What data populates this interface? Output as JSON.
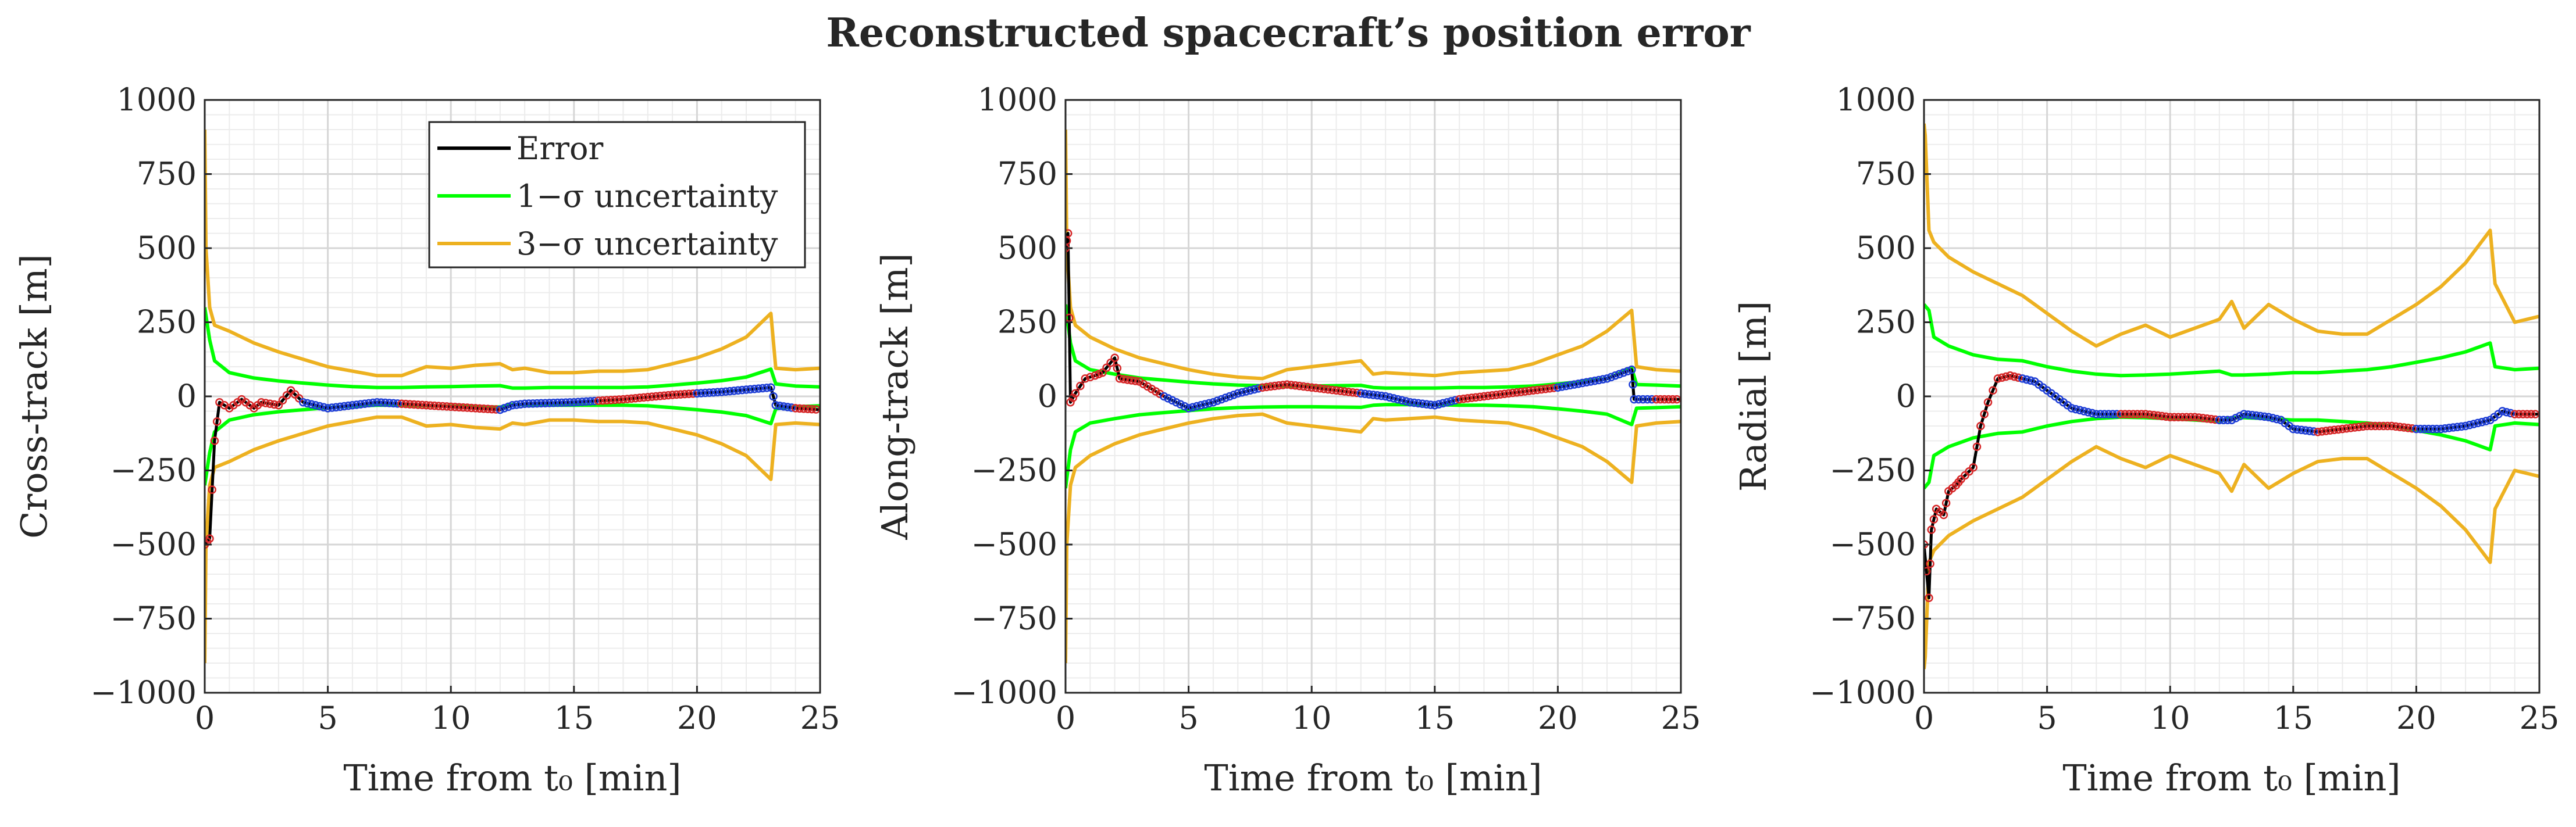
{
  "title": "Reconstructed spacecraft’s position error",
  "legend": {
    "placement": "top-right of first panel",
    "entries": [
      {
        "label": "Error",
        "color": "#000000"
      },
      {
        "label": "1−σ uncertainty",
        "color": "#00ff00"
      },
      {
        "label": "3−σ uncertainty",
        "color": "#edb120"
      }
    ]
  },
  "chart_data": [
    {
      "type": "line",
      "ylabel": "Cross-track [m]",
      "xlabel": "Time from t₀ [min]",
      "xlim": [
        0,
        25
      ],
      "ylim": [
        -1000,
        1000
      ],
      "xticks": [
        0,
        5,
        10,
        15,
        20,
        25
      ],
      "yticks": [
        -1000,
        -750,
        -500,
        -250,
        0,
        250,
        500,
        750,
        1000
      ],
      "grid": true,
      "series": [
        {
          "name": "Error",
          "color": "#000000",
          "x": [
            0,
            0.2,
            0.4,
            0.6,
            1.0,
            1.5,
            2.0,
            2.3,
            3.0,
            3.5,
            4.0,
            5.0,
            6.0,
            7.0,
            8.0,
            9.0,
            10.0,
            11.0,
            12.0,
            12.5,
            13.0,
            15.0,
            17.0,
            19.0,
            21.0,
            23.0,
            23.2,
            24.0,
            25.0
          ],
          "y": [
            -500,
            -480,
            -150,
            -20,
            -40,
            -10,
            -40,
            -20,
            -30,
            20,
            -20,
            -40,
            -30,
            -20,
            -25,
            -30,
            -35,
            -40,
            -45,
            -30,
            -25,
            -20,
            -10,
            5,
            15,
            30,
            -30,
            -40,
            -45
          ]
        },
        {
          "name": "1−σ uncertainty (upper)",
          "color": "#00ff00",
          "x": [
            0,
            0.2,
            0.4,
            1,
            2,
            3,
            4,
            5,
            6,
            7,
            8,
            9,
            10,
            11,
            12,
            12.5,
            13,
            14,
            15,
            16,
            17,
            18,
            19,
            20,
            21,
            22,
            23,
            23.2,
            24,
            25
          ],
          "y": [
            300,
            190,
            120,
            80,
            62,
            52,
            45,
            38,
            33,
            30,
            30,
            32,
            33,
            35,
            36,
            28,
            28,
            30,
            30,
            30,
            30,
            32,
            38,
            45,
            53,
            65,
            92,
            42,
            35,
            32
          ]
        },
        {
          "name": "3−σ uncertainty (upper)",
          "color": "#edb120",
          "x": [
            0,
            0.05,
            0.2,
            0.4,
            1,
            2,
            3,
            4,
            5,
            6,
            7,
            8,
            9,
            10,
            11,
            12,
            12.5,
            13,
            14,
            15,
            16,
            17,
            18,
            19,
            20,
            21,
            22,
            23,
            23.2,
            24,
            25
          ],
          "y": [
            900,
            500,
            300,
            240,
            220,
            180,
            150,
            125,
            100,
            85,
            70,
            70,
            100,
            95,
            105,
            110,
            90,
            95,
            80,
            80,
            85,
            85,
            90,
            110,
            130,
            160,
            200,
            280,
            95,
            90,
            95
          ]
        }
      ]
    },
    {
      "type": "line",
      "ylabel": "Along-track [m]",
      "xlabel": "Time from t₀ [min]",
      "xlim": [
        0,
        25
      ],
      "ylim": [
        -1000,
        1000
      ],
      "xticks": [
        0,
        5,
        10,
        15,
        20,
        25
      ],
      "yticks": [
        -1000,
        -750,
        -500,
        -250,
        0,
        250,
        500,
        750,
        1000
      ],
      "grid": true,
      "series": [
        {
          "name": "Error",
          "color": "#000000",
          "x": [
            0,
            0.1,
            0.2,
            0.4,
            0.8,
            1.2,
            1.5,
            2.0,
            2.2,
            3.0,
            4.0,
            5.0,
            6.0,
            7.0,
            8.0,
            9.0,
            10.0,
            11.0,
            12.0,
            13.0,
            14.0,
            15.0,
            16.0,
            17.0,
            18.0,
            19.0,
            20.0,
            21.0,
            22.0,
            23.0,
            23.1,
            24.0,
            25.0
          ],
          "y": [
            500,
            550,
            -20,
            10,
            60,
            70,
            80,
            130,
            60,
            50,
            0,
            -40,
            -20,
            10,
            30,
            40,
            30,
            20,
            10,
            0,
            -20,
            -30,
            -10,
            0,
            10,
            20,
            30,
            45,
            60,
            90,
            -10,
            -10,
            -10
          ]
        },
        {
          "name": "1−σ uncertainty (upper)",
          "color": "#00ff00",
          "x": [
            0,
            0.2,
            0.4,
            1,
            2,
            3,
            4,
            5,
            6,
            7,
            8,
            9,
            10,
            11,
            12,
            12.5,
            13,
            14,
            15,
            16,
            17,
            18,
            19,
            20,
            21,
            22,
            23,
            23.2,
            24,
            25
          ],
          "y": [
            310,
            180,
            120,
            90,
            75,
            62,
            55,
            48,
            42,
            38,
            36,
            35,
            35,
            36,
            37,
            30,
            28,
            28,
            28,
            30,
            30,
            32,
            35,
            42,
            50,
            60,
            95,
            40,
            38,
            35
          ]
        },
        {
          "name": "3−σ uncertainty (upper)",
          "color": "#edb120",
          "x": [
            0,
            0.05,
            0.2,
            0.4,
            1,
            2,
            3,
            4,
            5,
            6,
            7,
            8,
            9,
            10,
            11,
            12,
            12.5,
            13,
            14,
            15,
            16,
            17,
            18,
            19,
            20,
            21,
            22,
            23,
            23.2,
            24,
            25
          ],
          "y": [
            900,
            500,
            300,
            240,
            200,
            160,
            130,
            110,
            90,
            75,
            65,
            60,
            90,
            100,
            110,
            120,
            75,
            80,
            75,
            70,
            80,
            85,
            90,
            110,
            140,
            170,
            220,
            290,
            100,
            90,
            85
          ]
        }
      ]
    },
    {
      "type": "line",
      "ylabel": "Radial [m]",
      "xlabel": "Time from t₀ [min]",
      "xlim": [
        0,
        25
      ],
      "ylim": [
        -1000,
        1000
      ],
      "xticks": [
        0,
        5,
        10,
        15,
        20,
        25
      ],
      "yticks": [
        -1000,
        -750,
        -500,
        -250,
        0,
        250,
        500,
        750,
        1000
      ],
      "grid": true,
      "series": [
        {
          "name": "Error",
          "color": "#000000",
          "x": [
            0,
            0.2,
            0.3,
            0.5,
            0.8,
            1.0,
            1.3,
            1.5,
            2.0,
            2.3,
            2.6,
            3.0,
            3.5,
            4.0,
            4.5,
            5.0,
            6.0,
            7.0,
            8.0,
            9.0,
            10.0,
            11.0,
            12.0,
            12.5,
            13.0,
            14.0,
            14.5,
            15.0,
            16.0,
            17.0,
            18.0,
            19.0,
            20.0,
            21.0,
            22.0,
            23.0,
            23.5,
            24.0,
            25.0
          ],
          "y": [
            -500,
            -680,
            -450,
            -380,
            -400,
            -320,
            -300,
            -280,
            -240,
            -100,
            -20,
            60,
            70,
            60,
            50,
            20,
            -40,
            -60,
            -60,
            -60,
            -70,
            -70,
            -80,
            -80,
            -60,
            -70,
            -80,
            -110,
            -120,
            -110,
            -100,
            -100,
            -110,
            -110,
            -100,
            -80,
            -50,
            -60,
            -60
          ]
        },
        {
          "name": "1−σ uncertainty (upper)",
          "color": "#00ff00",
          "x": [
            0,
            0.2,
            0.4,
            1,
            2,
            3,
            4,
            5,
            6,
            7,
            8,
            9,
            10,
            11,
            12,
            12.5,
            13,
            14,
            15,
            16,
            17,
            18,
            19,
            20,
            21,
            22,
            23,
            23.2,
            24,
            25
          ],
          "y": [
            310,
            290,
            200,
            170,
            140,
            125,
            120,
            100,
            85,
            75,
            70,
            72,
            75,
            80,
            85,
            72,
            72,
            75,
            80,
            80,
            85,
            90,
            100,
            115,
            130,
            150,
            180,
            100,
            90,
            95
          ]
        },
        {
          "name": "3−σ uncertainty (upper)",
          "color": "#edb120",
          "x": [
            0,
            0.05,
            0.2,
            0.4,
            1,
            2,
            3,
            4,
            5,
            6,
            7,
            8,
            9,
            10,
            11,
            12,
            12.5,
            13,
            14,
            15,
            16,
            17,
            18,
            19,
            20,
            21,
            22,
            23,
            23.2,
            24,
            25
          ],
          "y": [
            920,
            880,
            560,
            520,
            470,
            420,
            380,
            340,
            280,
            220,
            170,
            210,
            240,
            200,
            230,
            260,
            320,
            230,
            310,
            260,
            220,
            210,
            210,
            260,
            310,
            370,
            450,
            560,
            380,
            250,
            270
          ]
        }
      ]
    }
  ]
}
